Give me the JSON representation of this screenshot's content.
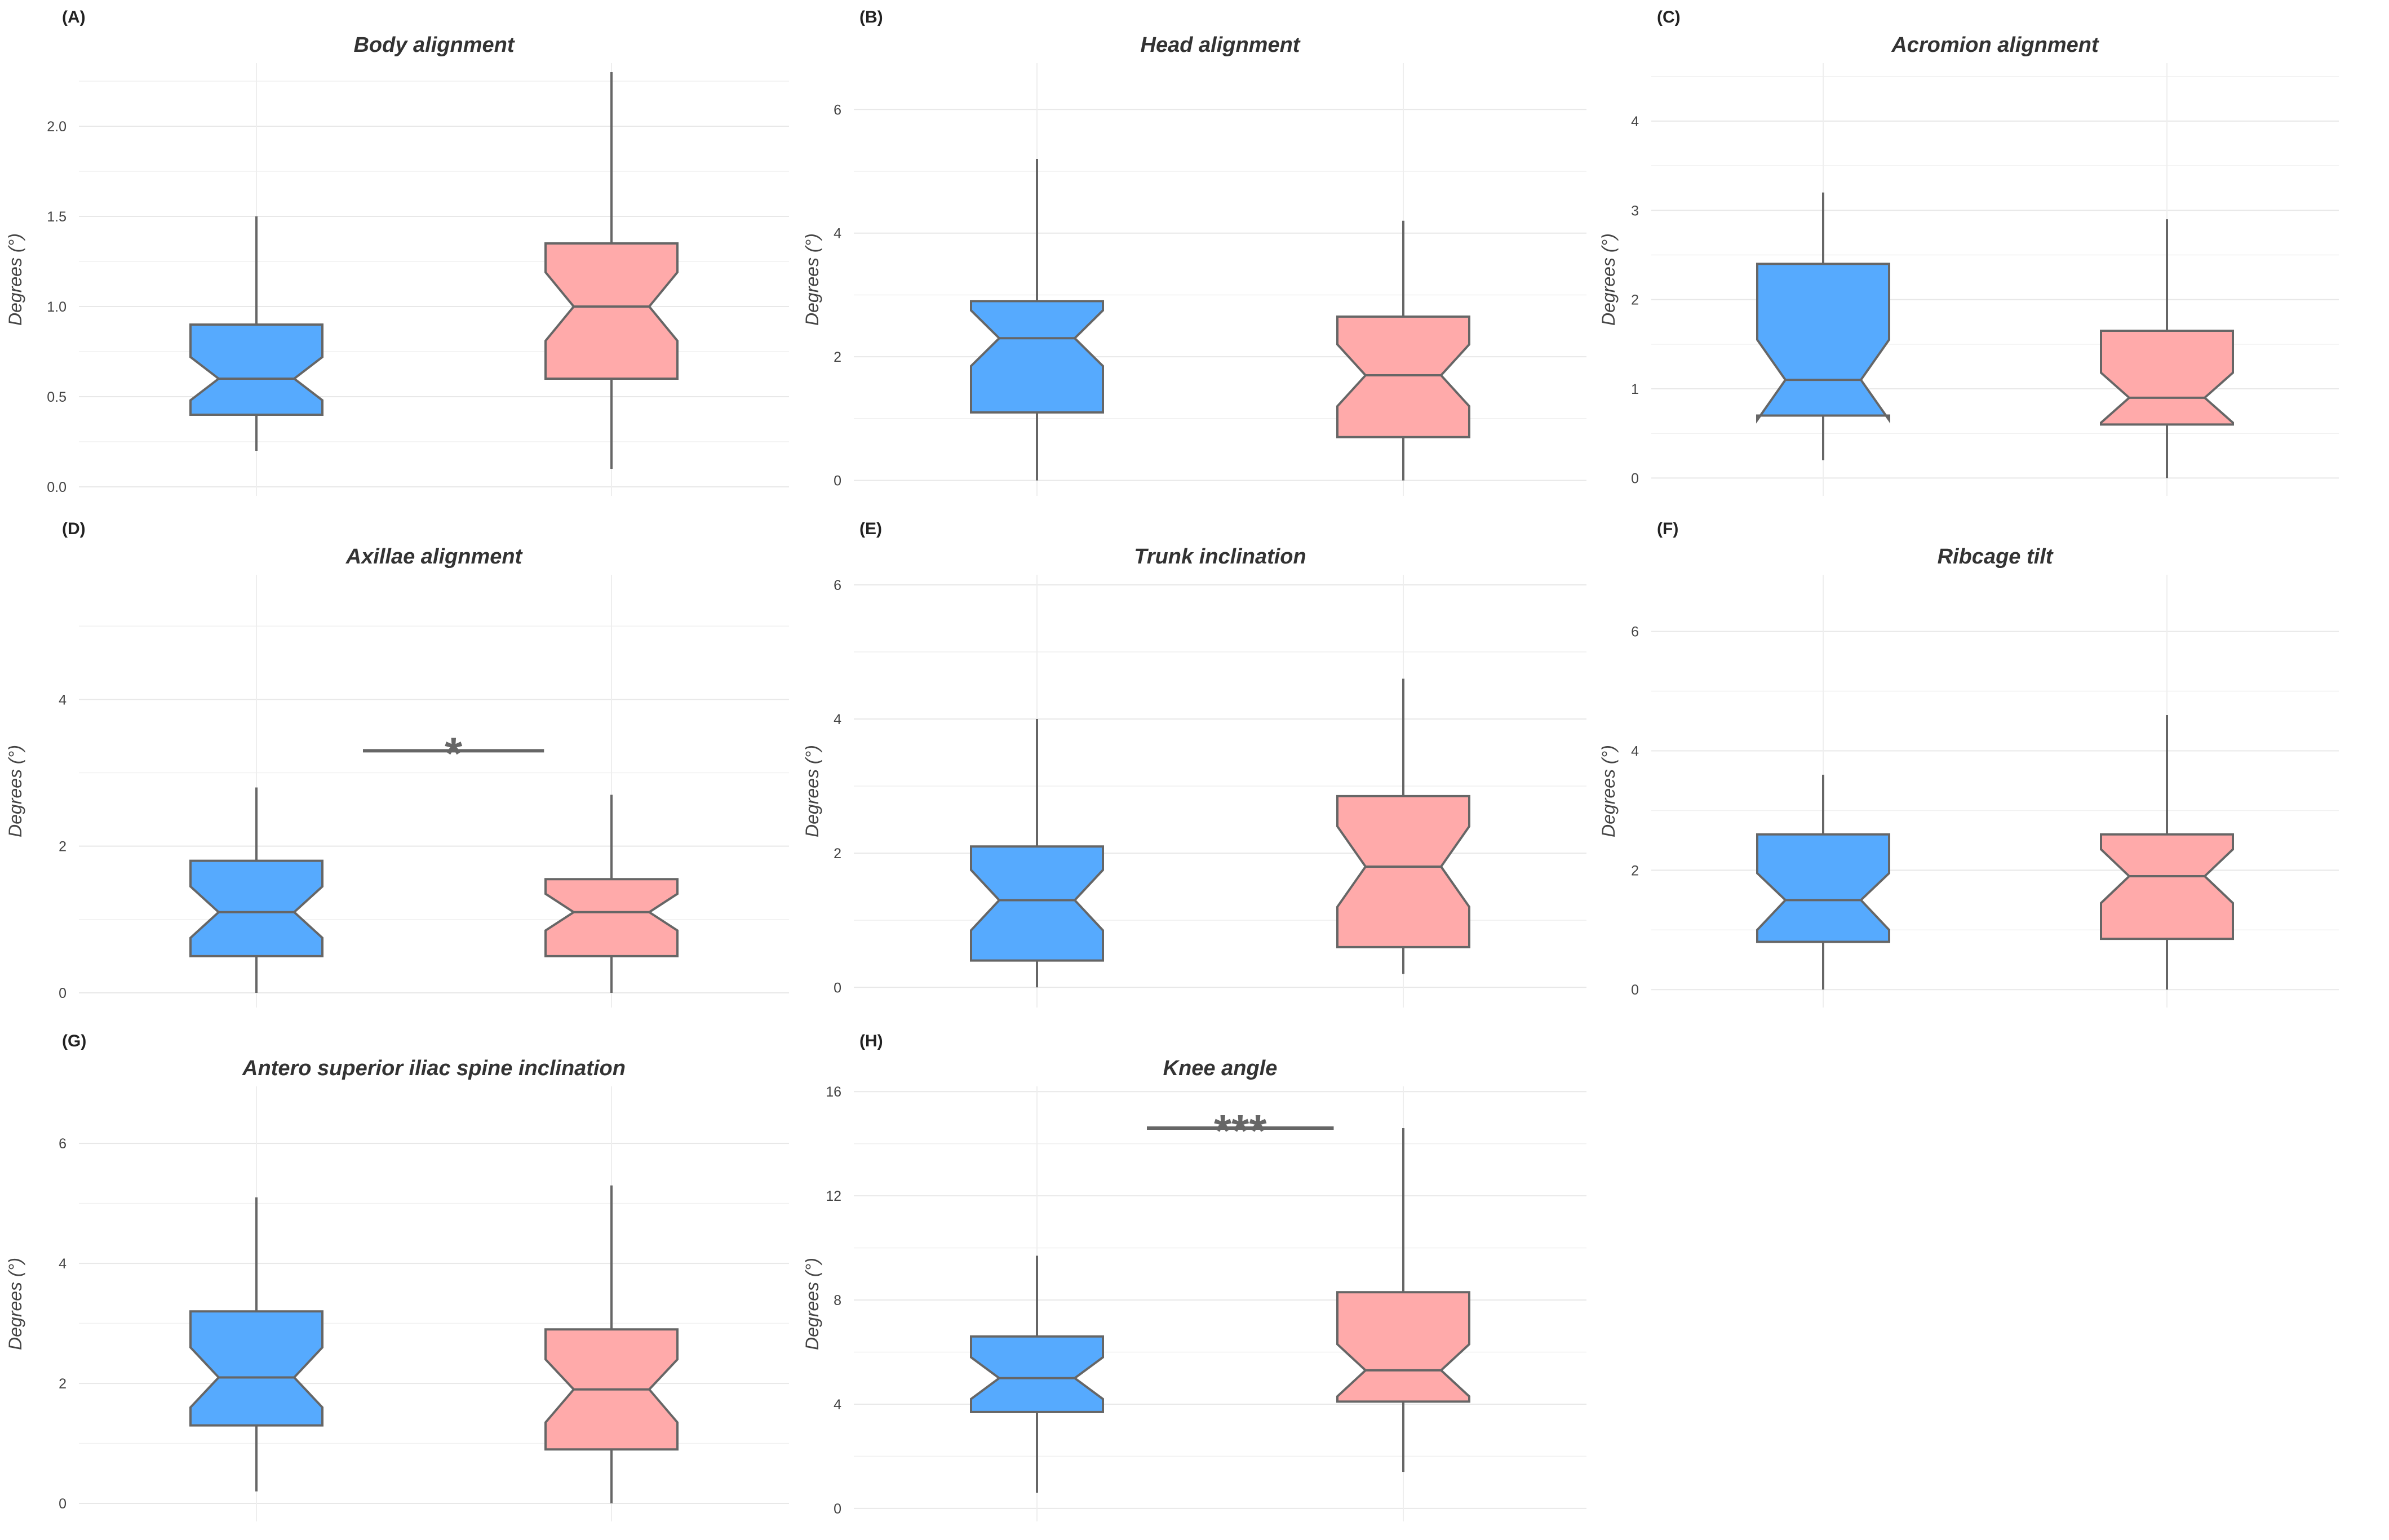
{
  "chart_data": [
    {
      "type": "boxplot",
      "notched": true,
      "tag": "(A)",
      "title": "Body alignment",
      "ylabel": "Degrees (°)",
      "ylim": [
        -0.05,
        2.35
      ],
      "yticks": [
        0.0,
        0.5,
        1.0,
        1.5,
        2.0
      ],
      "ytick_labels": [
        "0.0",
        "0.5",
        "1.0",
        "1.5",
        "2.0"
      ],
      "groups": [
        {
          "min": 0.2,
          "q1": 0.4,
          "median": 0.6,
          "q3": 0.9,
          "max": 1.5,
          "notch_low": 0.48,
          "notch_high": 0.72,
          "color": "#56AAFE"
        },
        {
          "min": 0.1,
          "q1": 0.6,
          "median": 1.0,
          "q3": 1.35,
          "max": 2.3,
          "notch_low": 0.81,
          "notch_high": 1.19,
          "color": "#FFAAAA"
        }
      ],
      "significance": null
    },
    {
      "type": "boxplot",
      "notched": true,
      "tag": "(B)",
      "title": "Head alignment",
      "ylabel": "Degrees (°)",
      "ylim": [
        -0.25,
        6.75
      ],
      "yticks": [
        0,
        2,
        4,
        6
      ],
      "ytick_labels": [
        "0",
        "2",
        "4",
        "6"
      ],
      "groups": [
        {
          "min": 0.0,
          "q1": 1.1,
          "median": 2.3,
          "q3": 2.9,
          "max": 5.2,
          "notch_low": 1.85,
          "notch_high": 2.75,
          "color": "#56AAFE"
        },
        {
          "min": 0.0,
          "q1": 0.7,
          "median": 1.7,
          "q3": 2.65,
          "max": 4.2,
          "notch_low": 1.2,
          "notch_high": 2.2,
          "color": "#FFAAAA"
        }
      ],
      "significance": null
    },
    {
      "type": "boxplot",
      "notched": true,
      "tag": "(C)",
      "title": "Acromion alignment",
      "ylabel": "Degrees (°)",
      "ylim": [
        -0.2,
        4.65
      ],
      "yticks": [
        0,
        1,
        2,
        3,
        4
      ],
      "ytick_labels": [
        "0",
        "1",
        "2",
        "3",
        "4"
      ],
      "groups": [
        {
          "min": 0.2,
          "q1": 0.7,
          "median": 1.1,
          "q3": 2.4,
          "max": 3.2,
          "notch_low": 0.65,
          "notch_high": 1.55,
          "color": "#56AAFE"
        },
        {
          "min": 0.0,
          "q1": 0.6,
          "median": 0.9,
          "q3": 1.65,
          "max": 2.9,
          "notch_low": 0.62,
          "notch_high": 1.18,
          "color": "#FFAAAA"
        }
      ],
      "significance": null
    },
    {
      "type": "boxplot",
      "notched": true,
      "tag": "(D)",
      "title": "Axillae alignment",
      "ylabel": "Degrees (°)",
      "ylim": [
        -0.2,
        5.7
      ],
      "yticks": [
        0,
        2,
        4
      ],
      "ytick_labels": [
        "0",
        "2",
        "4"
      ],
      "groups": [
        {
          "min": 0.0,
          "q1": 0.5,
          "median": 1.1,
          "q3": 1.8,
          "max": 2.8,
          "notch_low": 0.75,
          "notch_high": 1.45,
          "color": "#56AAFE"
        },
        {
          "min": 0.0,
          "q1": 0.5,
          "median": 1.1,
          "q3": 1.55,
          "max": 2.7,
          "notch_low": 0.85,
          "notch_high": 1.35,
          "color": "#FFAAAA"
        }
      ],
      "significance": {
        "label": "*",
        "y": 3.3
      }
    },
    {
      "type": "boxplot",
      "notched": true,
      "tag": "(E)",
      "title": "Trunk inclination",
      "ylabel": "Degrees (°)",
      "ylim": [
        -0.3,
        6.15
      ],
      "yticks": [
        0,
        2,
        4,
        6
      ],
      "ytick_labels": [
        "0",
        "2",
        "4",
        "6"
      ],
      "groups": [
        {
          "min": 0.0,
          "q1": 0.4,
          "median": 1.3,
          "q3": 2.1,
          "max": 4.0,
          "notch_low": 0.85,
          "notch_high": 1.75,
          "color": "#56AAFE"
        },
        {
          "min": 0.2,
          "q1": 0.6,
          "median": 1.8,
          "q3": 2.85,
          "max": 4.6,
          "notch_low": 1.2,
          "notch_high": 2.4,
          "color": "#FFAAAA"
        }
      ],
      "significance": null
    },
    {
      "type": "boxplot",
      "notched": true,
      "tag": "(F)",
      "title": "Ribcage tilt",
      "ylabel": "Degrees (°)",
      "ylim": [
        -0.3,
        6.95
      ],
      "yticks": [
        0,
        2,
        4,
        6
      ],
      "ytick_labels": [
        "0",
        "2",
        "4",
        "6"
      ],
      "groups": [
        {
          "min": 0.0,
          "q1": 0.8,
          "median": 1.5,
          "q3": 2.6,
          "max": 3.6,
          "notch_low": 1.0,
          "notch_high": 1.95,
          "color": "#56AAFE"
        },
        {
          "min": 0.0,
          "q1": 0.85,
          "median": 1.9,
          "q3": 2.6,
          "max": 4.6,
          "notch_low": 1.45,
          "notch_high": 2.35,
          "color": "#FFAAAA"
        }
      ],
      "significance": null
    },
    {
      "type": "boxplot",
      "notched": true,
      "tag": "(G)",
      "title": "Antero superior iliac spine inclination",
      "ylabel": "Degrees (°)",
      "ylim": [
        -0.3,
        6.95
      ],
      "yticks": [
        0,
        2,
        4,
        6
      ],
      "ytick_labels": [
        "0",
        "2",
        "4",
        "6"
      ],
      "groups": [
        {
          "min": 0.2,
          "q1": 1.3,
          "median": 2.1,
          "q3": 3.2,
          "max": 5.1,
          "notch_low": 1.6,
          "notch_high": 2.6,
          "color": "#56AAFE"
        },
        {
          "min": 0.0,
          "q1": 0.9,
          "median": 1.9,
          "q3": 2.9,
          "max": 5.3,
          "notch_low": 1.35,
          "notch_high": 2.4,
          "color": "#FFAAAA"
        }
      ],
      "significance": null
    },
    {
      "type": "boxplot",
      "notched": true,
      "tag": "(H)",
      "title": "Knee angle",
      "ylabel": "Degrees (°)",
      "ylim": [
        -0.5,
        16.2
      ],
      "yticks": [
        0,
        4,
        8,
        12,
        16
      ],
      "ytick_labels": [
        "0",
        "4",
        "8",
        "12",
        "16"
      ],
      "groups": [
        {
          "min": 0.6,
          "q1": 3.7,
          "median": 5.0,
          "q3": 6.6,
          "max": 9.7,
          "notch_low": 4.2,
          "notch_high": 5.8,
          "color": "#56AAFE"
        },
        {
          "min": 1.4,
          "q1": 4.1,
          "median": 5.3,
          "q3": 8.3,
          "max": 14.6,
          "notch_low": 4.3,
          "notch_high": 6.3,
          "color": "#FFAAAA"
        }
      ],
      "significance": {
        "label": "***",
        "y": 14.6
      }
    }
  ]
}
